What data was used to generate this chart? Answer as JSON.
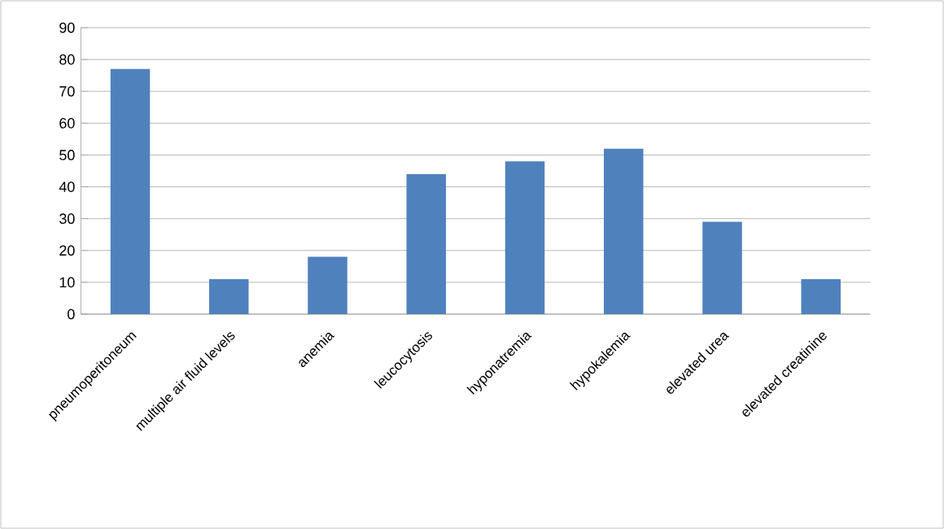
{
  "chart_data": {
    "type": "bar",
    "categories": [
      "pneumoperitoneum",
      "multiple air fluid levels",
      "anemia",
      "leucocytosis",
      "hyponatremia",
      "hypokalemia",
      "elevated urea",
      "elevated creatinine"
    ],
    "values": [
      77,
      11,
      18,
      44,
      48,
      52,
      29,
      11
    ],
    "color": "#4f81bd",
    "ylim": [
      0,
      90
    ],
    "yticks": [
      0,
      10,
      20,
      30,
      40,
      50,
      60,
      70,
      80,
      90
    ],
    "grid": "y"
  }
}
